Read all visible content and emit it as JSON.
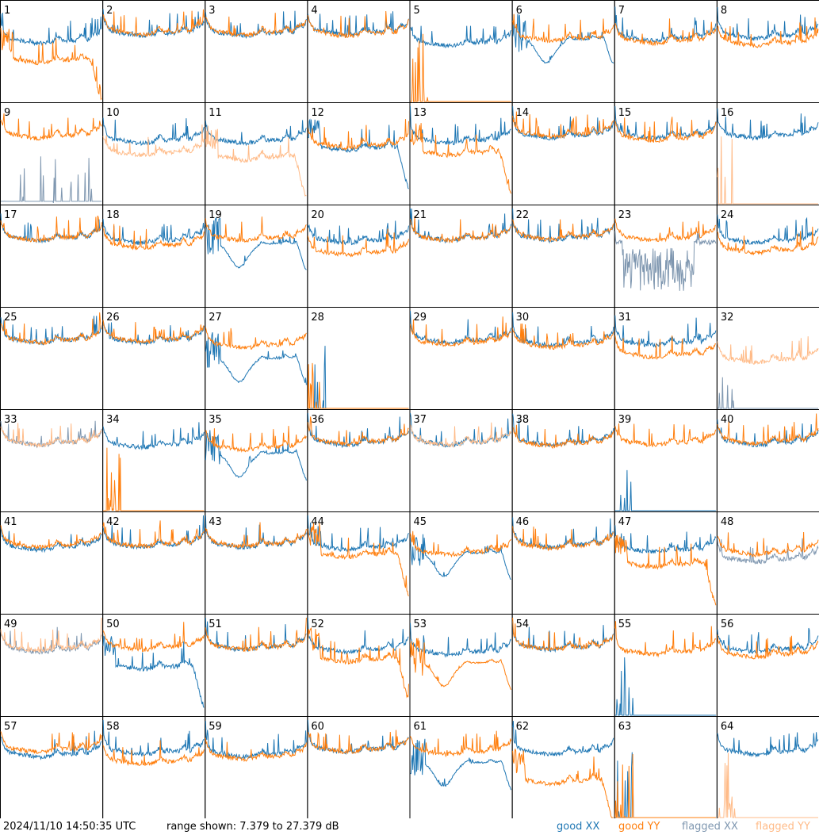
{
  "chart_data": {
    "type": "line",
    "grid_rows": 8,
    "grid_cols": 8,
    "panel_count": 64,
    "y_unit": "dB",
    "range_min_db": 7.379,
    "range_max_db": 27.379,
    "panels": [
      {
        "id": "1",
        "xx": "good",
        "yy": "good",
        "xx_shape": "flat_low",
        "yy_shape": "droop",
        "xx_db": 19.5,
        "yy_db": 15.5
      },
      {
        "id": "2",
        "xx": "good",
        "yy": "good",
        "xx_shape": "normal",
        "yy_shape": "normal",
        "xx_db": 21.0,
        "yy_db": 21.3
      },
      {
        "id": "3",
        "xx": "good",
        "yy": "good",
        "xx_shape": "normal",
        "yy_shape": "normal",
        "xx_db": 21.0,
        "yy_db": 21.2
      },
      {
        "id": "4",
        "xx": "good",
        "yy": "good",
        "xx_shape": "normal",
        "yy_shape": "normal",
        "xx_db": 21.2,
        "yy_db": 21.0
      },
      {
        "id": "5",
        "xx": "good",
        "yy": "good",
        "xx_shape": "normal",
        "yy_shape": "dead",
        "xx_db": 19.0,
        "yy_db": 7.4
      },
      {
        "id": "6",
        "xx": "good",
        "yy": "good",
        "xx_shape": "dip",
        "yy_shape": "normal",
        "xx_db": 17.5,
        "yy_db": 20.0
      },
      {
        "id": "7",
        "xx": "good",
        "yy": "good",
        "xx_shape": "normal",
        "yy_shape": "normal",
        "xx_db": 20.0,
        "yy_db": 19.5
      },
      {
        "id": "8",
        "xx": "good",
        "yy": "good",
        "xx_shape": "normal",
        "yy_shape": "normal",
        "xx_db": 20.5,
        "yy_db": 19.0
      },
      {
        "id": "9",
        "xx": "flagged",
        "yy": "good",
        "xx_shape": "sparse",
        "yy_shape": "normal",
        "xx_db": 8.0,
        "yy_db": 21.0
      },
      {
        "id": "10",
        "xx": "good",
        "yy": "flagged",
        "xx_shape": "normal",
        "yy_shape": "normal",
        "xx_db": 20.0,
        "yy_db": 17.5
      },
      {
        "id": "11",
        "xx": "good",
        "yy": "flagged",
        "xx_shape": "normal",
        "yy_shape": "droop",
        "xx_db": 20.0,
        "yy_db": 16.5
      },
      {
        "id": "12",
        "xx": "good",
        "yy": "good",
        "xx_shape": "droop",
        "yy_shape": "normal",
        "xx_db": 18.5,
        "yy_db": 19.0
      },
      {
        "id": "13",
        "xx": "good",
        "yy": "good",
        "xx_shape": "normal",
        "yy_shape": "droop",
        "xx_db": 20.0,
        "yy_db": 17.5
      },
      {
        "id": "14",
        "xx": "good",
        "yy": "good",
        "xx_shape": "normal",
        "yy_shape": "normal",
        "xx_db": 21.0,
        "yy_db": 21.3
      },
      {
        "id": "15",
        "xx": "good",
        "yy": "good",
        "xx_shape": "normal",
        "yy_shape": "normal",
        "xx_db": 21.0,
        "yy_db": 20.5
      },
      {
        "id": "16",
        "xx": "good",
        "yy": "flagged",
        "xx_shape": "normal",
        "yy_shape": "dead",
        "xx_db": 21.0,
        "yy_db": 7.4
      },
      {
        "id": "17",
        "xx": "good",
        "yy": "good",
        "xx_shape": "normal",
        "yy_shape": "normal",
        "xx_db": 21.0,
        "yy_db": 21.0
      },
      {
        "id": "18",
        "xx": "good",
        "yy": "good",
        "xx_shape": "normal",
        "yy_shape": "normal",
        "xx_db": 20.5,
        "yy_db": 19.5
      },
      {
        "id": "19",
        "xx": "good",
        "yy": "good",
        "xx_shape": "dip",
        "yy_shape": "normal",
        "xx_db": 17.5,
        "yy_db": 21.0
      },
      {
        "id": "20",
        "xx": "good",
        "yy": "good",
        "xx_shape": "normal",
        "yy_shape": "normal",
        "xx_db": 20.5,
        "yy_db": 18.0
      },
      {
        "id": "21",
        "xx": "good",
        "yy": "good",
        "xx_shape": "normal",
        "yy_shape": "normal",
        "xx_db": 21.0,
        "yy_db": 21.0
      },
      {
        "id": "22",
        "xx": "good",
        "yy": "good",
        "xx_shape": "normal",
        "yy_shape": "normal",
        "xx_db": 21.0,
        "yy_db": 21.2
      },
      {
        "id": "23",
        "xx": "flagged",
        "yy": "good",
        "xx_shape": "noisy",
        "yy_shape": "normal",
        "xx_db": 12.0,
        "yy_db": 21.0
      },
      {
        "id": "24",
        "xx": "good",
        "yy": "good",
        "xx_shape": "normal",
        "yy_shape": "normal",
        "xx_db": 20.5,
        "yy_db": 18.5
      },
      {
        "id": "25",
        "xx": "good",
        "yy": "good",
        "xx_shape": "normal",
        "yy_shape": "normal",
        "xx_db": 21.0,
        "yy_db": 21.0
      },
      {
        "id": "26",
        "xx": "good",
        "yy": "good",
        "xx_shape": "normal",
        "yy_shape": "normal",
        "xx_db": 21.0,
        "yy_db": 21.2
      },
      {
        "id": "27",
        "xx": "good",
        "yy": "good",
        "xx_shape": "dip",
        "yy_shape": "normal",
        "xx_db": 15.0,
        "yy_db": 20.0
      },
      {
        "id": "28",
        "xx": "good",
        "yy": "good",
        "xx_shape": "dead",
        "yy_shape": "dead",
        "xx_db": 7.4,
        "yy_db": 7.4
      },
      {
        "id": "29",
        "xx": "good",
        "yy": "good",
        "xx_shape": "normal",
        "yy_shape": "normal",
        "xx_db": 21.0,
        "yy_db": 20.5
      },
      {
        "id": "30",
        "xx": "good",
        "yy": "good",
        "xx_shape": "normal",
        "yy_shape": "normal",
        "xx_db": 20.5,
        "yy_db": 20.0
      },
      {
        "id": "31",
        "xx": "good",
        "yy": "good",
        "xx_shape": "normal",
        "yy_shape": "normal",
        "xx_db": 20.5,
        "yy_db": 18.0
      },
      {
        "id": "32",
        "xx": "flagged",
        "yy": "flagged",
        "xx_shape": "dead",
        "yy_shape": "normal",
        "xx_db": 7.4,
        "yy_db": 17.0
      },
      {
        "id": "33",
        "xx": "flagged",
        "yy": "flagged",
        "xx_shape": "normal",
        "yy_shape": "normal",
        "xx_db": 21.0,
        "yy_db": 21.0
      },
      {
        "id": "34",
        "xx": "good",
        "yy": "good",
        "xx_shape": "normal",
        "yy_shape": "dead",
        "xx_db": 20.5,
        "yy_db": 7.4
      },
      {
        "id": "35",
        "xx": "good",
        "yy": "good",
        "xx_shape": "dip",
        "yy_shape": "normal",
        "xx_db": 16.5,
        "yy_db": 20.0
      },
      {
        "id": "36",
        "xx": "good",
        "yy": "good",
        "xx_shape": "normal",
        "yy_shape": "normal",
        "xx_db": 21.0,
        "yy_db": 21.2
      },
      {
        "id": "37",
        "xx": "good",
        "yy": "flagged",
        "xx_shape": "normal",
        "yy_shape": "normal",
        "xx_db": 21.0,
        "yy_db": 21.0
      },
      {
        "id": "38",
        "xx": "good",
        "yy": "good",
        "xx_shape": "normal",
        "yy_shape": "normal",
        "xx_db": 21.0,
        "yy_db": 20.8
      },
      {
        "id": "39",
        "xx": "good",
        "yy": "good",
        "xx_shape": "dead",
        "yy_shape": "normal",
        "xx_db": 7.4,
        "yy_db": 21.0
      },
      {
        "id": "40",
        "xx": "good",
        "yy": "good",
        "xx_shape": "normal",
        "yy_shape": "normal",
        "xx_db": 21.0,
        "yy_db": 21.3
      },
      {
        "id": "41",
        "xx": "good",
        "yy": "good",
        "xx_shape": "normal",
        "yy_shape": "normal",
        "xx_db": 20.5,
        "yy_db": 21.0
      },
      {
        "id": "42",
        "xx": "good",
        "yy": "good",
        "xx_shape": "normal",
        "yy_shape": "normal",
        "xx_db": 21.0,
        "yy_db": 21.2
      },
      {
        "id": "43",
        "xx": "good",
        "yy": "good",
        "xx_shape": "normal",
        "yy_shape": "normal",
        "xx_db": 21.0,
        "yy_db": 21.2
      },
      {
        "id": "44",
        "xx": "good",
        "yy": "good",
        "xx_shape": "normal",
        "yy_shape": "droop",
        "xx_db": 20.5,
        "yy_db": 19.0
      },
      {
        "id": "45",
        "xx": "good",
        "yy": "good",
        "xx_shape": "dip",
        "yy_shape": "normal",
        "xx_db": 17.0,
        "yy_db": 19.5
      },
      {
        "id": "46",
        "xx": "good",
        "yy": "good",
        "xx_shape": "normal",
        "yy_shape": "normal",
        "xx_db": 21.0,
        "yy_db": 20.8
      },
      {
        "id": "47",
        "xx": "good",
        "yy": "good",
        "xx_shape": "normal",
        "yy_shape": "droop",
        "xx_db": 20.0,
        "yy_db": 17.0
      },
      {
        "id": "48",
        "xx": "flagged",
        "yy": "good",
        "xx_shape": "normal",
        "yy_shape": "normal",
        "xx_db": 18.0,
        "yy_db": 19.5
      },
      {
        "id": "49",
        "xx": "flagged",
        "yy": "flagged",
        "xx_shape": "normal",
        "yy_shape": "normal",
        "xx_db": 20.5,
        "yy_db": 20.8
      },
      {
        "id": "50",
        "xx": "good",
        "yy": "good",
        "xx_shape": "droop",
        "yy_shape": "normal",
        "xx_db": 17.0,
        "yy_db": 21.0
      },
      {
        "id": "51",
        "xx": "good",
        "yy": "good",
        "xx_shape": "normal",
        "yy_shape": "normal",
        "xx_db": 21.0,
        "yy_db": 21.0
      },
      {
        "id": "52",
        "xx": "good",
        "yy": "good",
        "xx_shape": "normal",
        "yy_shape": "droop",
        "xx_db": 20.5,
        "yy_db": 18.5
      },
      {
        "id": "53",
        "xx": "good",
        "yy": "good",
        "xx_shape": "normal",
        "yy_shape": "dip",
        "xx_db": 20.0,
        "yy_db": 15.5
      },
      {
        "id": "54",
        "xx": "good",
        "yy": "good",
        "xx_shape": "normal",
        "yy_shape": "normal",
        "xx_db": 21.0,
        "yy_db": 21.0
      },
      {
        "id": "55",
        "xx": "good",
        "yy": "good",
        "xx_shape": "dead",
        "yy_shape": "normal",
        "xx_db": 7.4,
        "yy_db": 20.0
      },
      {
        "id": "56",
        "xx": "good",
        "yy": "good",
        "xx_shape": "normal",
        "yy_shape": "normal",
        "xx_db": 20.5,
        "yy_db": 19.5
      },
      {
        "id": "57",
        "xx": "good",
        "yy": "good",
        "xx_shape": "normal",
        "yy_shape": "normal",
        "xx_db": 20.0,
        "yy_db": 21.0
      },
      {
        "id": "58",
        "xx": "good",
        "yy": "good",
        "xx_shape": "normal",
        "yy_shape": "normal",
        "xx_db": 20.5,
        "yy_db": 18.5
      },
      {
        "id": "59",
        "xx": "good",
        "yy": "good",
        "xx_shape": "normal",
        "yy_shape": "normal",
        "xx_db": 20.0,
        "yy_db": 19.5
      },
      {
        "id": "60",
        "xx": "good",
        "yy": "good",
        "xx_shape": "normal",
        "yy_shape": "normal",
        "xx_db": 21.0,
        "yy_db": 21.0
      },
      {
        "id": "61",
        "xx": "good",
        "yy": "good",
        "xx_shape": "dip",
        "yy_shape": "normal",
        "xx_db": 16.0,
        "yy_db": 20.5
      },
      {
        "id": "62",
        "xx": "good",
        "yy": "good",
        "xx_shape": "normal",
        "yy_shape": "droop",
        "xx_db": 20.5,
        "yy_db": 14.5
      },
      {
        "id": "63",
        "xx": "good",
        "yy": "good",
        "xx_shape": "dead",
        "yy_shape": "dead",
        "xx_db": 7.4,
        "yy_db": 7.4
      },
      {
        "id": "64",
        "xx": "good",
        "yy": "flagged",
        "xx_shape": "normal",
        "yy_shape": "dead",
        "xx_db": 20.5,
        "yy_db": 7.4
      }
    ]
  },
  "colors": {
    "good_xx": "#1f77b4",
    "good_yy": "#ff7f0e",
    "flagged_xx": "#7f97b0",
    "flagged_yy": "#ffbb88",
    "grid": "#000000"
  },
  "footer": {
    "timestamp": "2024/11/10 14:50:35 UTC",
    "range_text": "range shown: 7.379 to 27.379 dB",
    "legend": {
      "good_xx": "good XX",
      "good_yy": "good YY",
      "flagged_xx": "flagged XX",
      "flagged_yy": "flagged YY"
    }
  }
}
